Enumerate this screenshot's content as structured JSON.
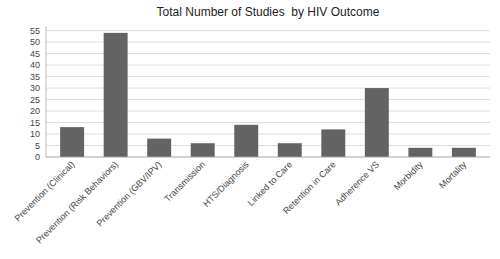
{
  "chart_data": {
    "type": "bar",
    "title": "Total Number of Studies  by HIV Outcome",
    "categories": [
      "Prevention (Clinical)",
      "Prevention (Risk Behaviors)",
      "Prevention (GBV/IPV)",
      "Transmission",
      "HTS/Diagnosis",
      "Linked to Care",
      "Retention in Care",
      "Adherence VS",
      "Morbidity",
      "Mortality"
    ],
    "values": [
      13,
      54,
      8,
      6,
      14,
      6,
      12,
      30,
      4,
      4
    ],
    "color": "#636363",
    "ylim": [
      0,
      57
    ],
    "yticks": [
      0,
      5,
      10,
      15,
      20,
      25,
      30,
      35,
      40,
      45,
      50,
      55
    ],
    "grid": true
  }
}
